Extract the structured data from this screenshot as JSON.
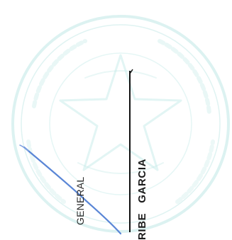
{
  "stamp": {
    "seal_color": "#bfe8e6"
  },
  "signature": {
    "line_color": "#5a86d6",
    "rule_color": "#111111"
  },
  "labels": {
    "general": "GENERAL",
    "name_part_1": "RIBE",
    "name_part_2": "GARCIA"
  }
}
